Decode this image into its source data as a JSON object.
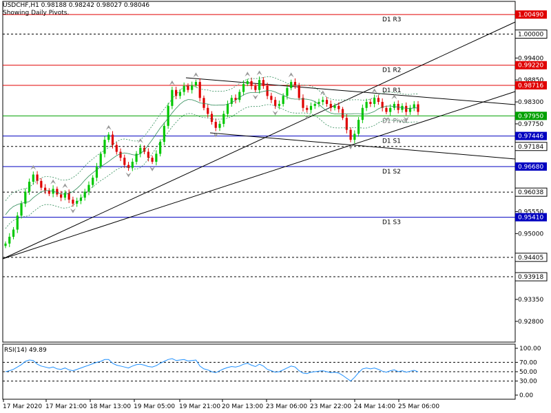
{
  "header": {
    "symbol_line": "USDCHF,H1  0.98188 0.98242 0.98027 0.98046",
    "subtitle": "Showing Daily Pivots."
  },
  "colors": {
    "bull": "#00c800",
    "bear": "#e00000",
    "resistance": "#e00000",
    "support": "#0000c0",
    "pivot": "#00a000",
    "rsi": "#1e90ff",
    "bands": "#2e8b57"
  },
  "chart_data": [
    {
      "type": "line",
      "title": "USDCHF,H1",
      "ylim": [
        0.9228,
        1.0082
      ],
      "y_ticks": [
        "0.99400",
        "0.98850",
        "0.98300",
        "0.97750",
        "0.95550",
        "0.95000",
        "0.93350",
        "0.92800"
      ],
      "x_ticks": [
        "17 Mar 2020",
        "17 Mar 21:00",
        "18 Mar 13:00",
        "19 Mar 05:00",
        "19 Mar 21:00",
        "20 Mar 13:00",
        "23 Mar 06:00",
        "23 Mar 22:00",
        "24 Mar 14:00",
        "25 Mar 06:00"
      ],
      "ohlc": {
        "open": 0.98188,
        "high": 0.98242,
        "low": 0.98027,
        "close": 0.98046
      },
      "pivot_levels": [
        {
          "name": "D1 R3",
          "value": "1.00490",
          "kind": "resistance"
        },
        {
          "name": "D1 R2",
          "value": "0.99220",
          "kind": "resistance"
        },
        {
          "name": "D1 R1",
          "value": "0.98716",
          "kind": "resistance"
        },
        {
          "name": "D1 Pivot",
          "value": "0.97950",
          "kind": "pivot"
        },
        {
          "name": "D1 S1",
          "value": "0.97446",
          "kind": "support"
        },
        {
          "name": "D1 S2",
          "value": "0.96680",
          "kind": "support"
        },
        {
          "name": "D1 S3",
          "value": "0.95410",
          "kind": "support"
        }
      ],
      "dashed_levels": [
        "1.00000",
        "0.97184",
        "0.96038",
        "0.94405",
        "0.93918"
      ],
      "price_path": [
        0.9475,
        0.9492,
        0.951,
        0.9545,
        0.9575,
        0.9605,
        0.963,
        0.9648,
        0.9632,
        0.9615,
        0.9608,
        0.96,
        0.9612,
        0.9598,
        0.959,
        0.9602,
        0.9585,
        0.9575,
        0.9582,
        0.959,
        0.9605,
        0.9622,
        0.964,
        0.9668,
        0.97,
        0.9735,
        0.9748,
        0.9722,
        0.9705,
        0.969,
        0.9672,
        0.9665,
        0.968,
        0.97,
        0.9715,
        0.9705,
        0.969,
        0.968,
        0.97,
        0.973,
        0.977,
        0.982,
        0.986,
        0.9845,
        0.9855,
        0.987,
        0.986,
        0.9872,
        0.988,
        0.984,
        0.9815,
        0.98,
        0.978,
        0.9765,
        0.9775,
        0.98,
        0.9825,
        0.984,
        0.9835,
        0.9855,
        0.9875,
        0.9882,
        0.987,
        0.986,
        0.9885,
        0.987,
        0.9845,
        0.9835,
        0.982,
        0.9825,
        0.9845,
        0.9865,
        0.988,
        0.9872,
        0.984,
        0.9815,
        0.981,
        0.982,
        0.9825,
        0.983,
        0.9835,
        0.9825,
        0.9815,
        0.982,
        0.9812,
        0.979,
        0.976,
        0.9735,
        0.975,
        0.9785,
        0.9815,
        0.983,
        0.9825,
        0.984,
        0.983,
        0.9815,
        0.9805,
        0.9815,
        0.9825,
        0.981,
        0.982,
        0.9805,
        0.9815,
        0.9824,
        0.9805
      ]
    },
    {
      "type": "line",
      "title": "RSI(14) 49.89",
      "ylim": [
        0,
        100
      ],
      "y_ticks": [
        "100.00",
        "70.00",
        "50.00",
        "30.00",
        "0.00"
      ],
      "levels": [
        70,
        50,
        30
      ],
      "values": [
        50,
        52,
        55,
        60,
        65,
        72,
        75,
        74,
        66,
        62,
        60,
        58,
        60,
        56,
        55,
        58,
        54,
        52,
        55,
        58,
        61,
        64,
        67,
        70,
        72,
        76,
        76,
        68,
        64,
        62,
        60,
        58,
        62,
        65,
        66,
        64,
        61,
        60,
        63,
        68,
        72,
        76,
        78,
        74,
        75,
        76,
        73,
        74,
        75,
        62,
        56,
        54,
        50,
        48,
        52,
        56,
        59,
        61,
        60,
        62,
        66,
        68,
        64,
        61,
        66,
        62,
        55,
        52,
        49,
        50,
        54,
        58,
        62,
        60,
        52,
        47,
        46,
        49,
        50,
        51,
        52,
        50,
        48,
        49,
        47,
        42,
        36,
        30,
        38,
        48,
        56,
        58,
        56,
        58,
        55,
        51,
        49,
        52,
        54,
        50,
        52,
        49,
        51,
        53,
        49.89
      ]
    }
  ]
}
